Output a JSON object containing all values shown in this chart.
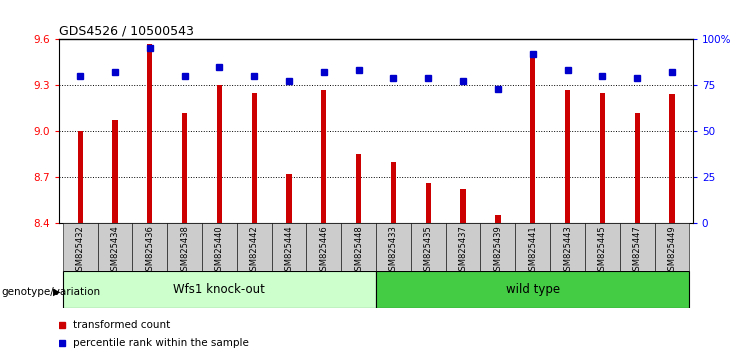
{
  "title": "GDS4526 / 10500543",
  "samples": [
    "GSM825432",
    "GSM825434",
    "GSM825436",
    "GSM825438",
    "GSM825440",
    "GSM825442",
    "GSM825444",
    "GSM825446",
    "GSM825448",
    "GSM825433",
    "GSM825435",
    "GSM825437",
    "GSM825439",
    "GSM825441",
    "GSM825443",
    "GSM825445",
    "GSM825447",
    "GSM825449"
  ],
  "bar_values": [
    9.0,
    9.07,
    9.57,
    9.12,
    9.3,
    9.25,
    8.72,
    9.27,
    8.85,
    8.8,
    8.66,
    8.62,
    8.45,
    9.5,
    9.27,
    9.25,
    9.12,
    9.24
  ],
  "dot_values": [
    80,
    82,
    95,
    80,
    85,
    80,
    77,
    82,
    83,
    79,
    79,
    77,
    73,
    92,
    83,
    80,
    79,
    82
  ],
  "ylim_left": [
    8.4,
    9.6
  ],
  "ylim_right": [
    0,
    100
  ],
  "yticks_left": [
    8.4,
    8.7,
    9.0,
    9.3,
    9.6
  ],
  "yticks_right": [
    0,
    25,
    50,
    75,
    100
  ],
  "bar_color": "#cc0000",
  "dot_color": "#0000cc",
  "group_band_color1": "#ccffcc",
  "group_band_color2": "#44cc44",
  "tick_bg_color": "#cccccc",
  "legend_red_label": "transformed count",
  "legend_blue_label": "percentile rank within the sample",
  "genotype_label": "genotype/variation",
  "groups": [
    {
      "label": "Wfs1 knock-out",
      "start": 0,
      "end": 9
    },
    {
      "label": "wild type",
      "start": 9,
      "end": 18
    }
  ]
}
